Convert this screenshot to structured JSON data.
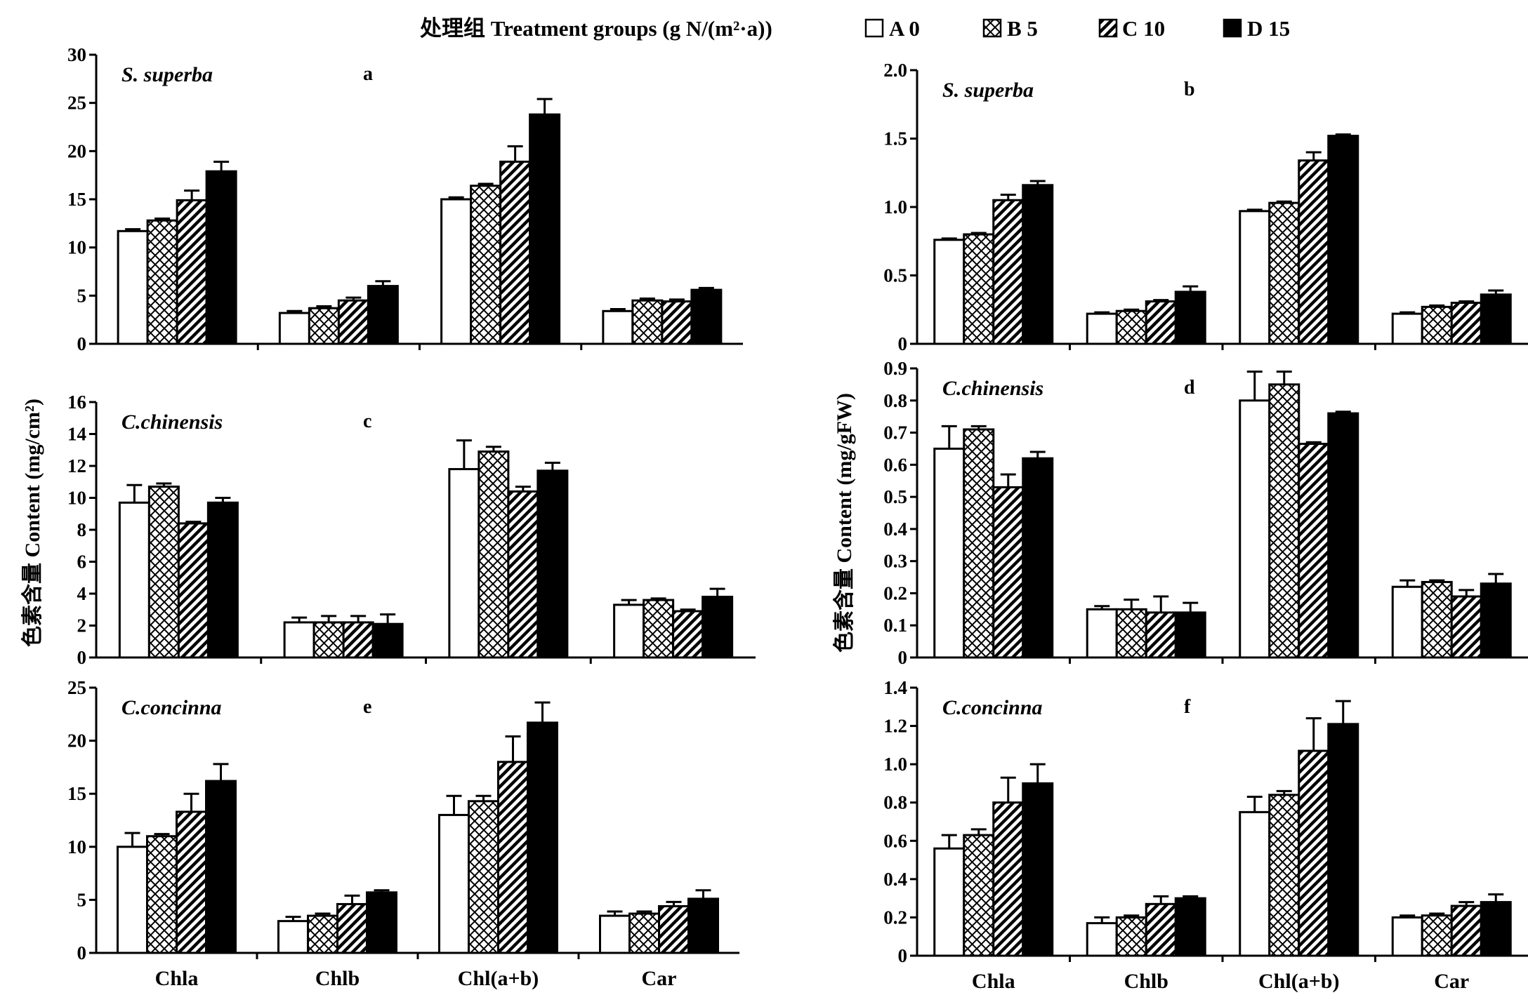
{
  "legend": {
    "title": "处理组 Treatment groups (g N/(m²·a))",
    "items": [
      {
        "key": "A",
        "label": "A 0",
        "pattern": "empty"
      },
      {
        "key": "B",
        "label": "B 5",
        "pattern": "crosshatch"
      },
      {
        "key": "C",
        "label": "C 10",
        "pattern": "diagonal"
      },
      {
        "key": "D",
        "label": "D 15",
        "pattern": "solid"
      }
    ]
  },
  "ylabels": {
    "left": "色素含量 Content (mg/cm²)",
    "right": "色素含量 Content (mg/gFW)"
  },
  "chart_data": [
    {
      "id": "a",
      "letter": "a",
      "species": "S. superba",
      "type": "bar",
      "categories": [
        "Chla",
        "Chlb",
        "Chl(a+b)",
        "Car"
      ],
      "ylim": [
        0,
        30
      ],
      "yticks": [
        0,
        5,
        10,
        15,
        20,
        25,
        30
      ],
      "series": [
        {
          "name": "A 0",
          "values": [
            11.7,
            3.2,
            15.0,
            3.4
          ],
          "errors": [
            0.2,
            0.2,
            0.2,
            0.2
          ]
        },
        {
          "name": "B 5",
          "values": [
            12.8,
            3.7,
            16.4,
            4.5
          ],
          "errors": [
            0.2,
            0.2,
            0.2,
            0.2
          ]
        },
        {
          "name": "C 10",
          "values": [
            14.9,
            4.5,
            18.9,
            4.4
          ],
          "errors": [
            1.0,
            0.3,
            1.6,
            0.2
          ]
        },
        {
          "name": "D 15",
          "values": [
            17.9,
            6.0,
            23.8,
            5.6
          ],
          "errors": [
            1.0,
            0.5,
            1.6,
            0.2
          ]
        }
      ]
    },
    {
      "id": "b",
      "letter": "b",
      "species": "S. superba",
      "type": "bar",
      "categories": [
        "Chla",
        "Chlb",
        "Chl(a+b)",
        "Car"
      ],
      "ylim": [
        0,
        2.0
      ],
      "yticks": [
        0,
        0.5,
        1.0,
        1.5,
        2.0
      ],
      "series": [
        {
          "name": "A 0",
          "values": [
            0.76,
            0.22,
            0.97,
            0.22
          ],
          "errors": [
            0.01,
            0.01,
            0.01,
            0.01
          ]
        },
        {
          "name": "B 5",
          "values": [
            0.8,
            0.24,
            1.03,
            0.27
          ],
          "errors": [
            0.01,
            0.01,
            0.01,
            0.01
          ]
        },
        {
          "name": "C 10",
          "values": [
            1.05,
            0.31,
            1.34,
            0.3
          ],
          "errors": [
            0.04,
            0.01,
            0.06,
            0.01
          ]
        },
        {
          "name": "D 15",
          "values": [
            1.16,
            0.38,
            1.52,
            0.36
          ],
          "errors": [
            0.03,
            0.04,
            0.01,
            0.03
          ]
        }
      ]
    },
    {
      "id": "c",
      "letter": "c",
      "species": "C.chinensis",
      "type": "bar",
      "categories": [
        "Chla",
        "Chlb",
        "Chl(a+b)",
        "Car"
      ],
      "ylim": [
        0,
        16
      ],
      "yticks": [
        0,
        2,
        4,
        6,
        8,
        10,
        12,
        14,
        16
      ],
      "series": [
        {
          "name": "A 0",
          "values": [
            9.7,
            2.2,
            11.8,
            3.3
          ],
          "errors": [
            1.1,
            0.3,
            1.8,
            0.3
          ]
        },
        {
          "name": "B 5",
          "values": [
            10.7,
            2.2,
            12.9,
            3.6
          ],
          "errors": [
            0.2,
            0.4,
            0.3,
            0.1
          ]
        },
        {
          "name": "C 10",
          "values": [
            8.4,
            2.2,
            10.4,
            2.9
          ],
          "errors": [
            0.1,
            0.4,
            0.3,
            0.1
          ]
        },
        {
          "name": "D 15",
          "values": [
            9.7,
            2.1,
            11.7,
            3.8
          ],
          "errors": [
            0.3,
            0.6,
            0.5,
            0.5
          ]
        }
      ]
    },
    {
      "id": "d",
      "letter": "d",
      "species": "C.chinensis",
      "type": "bar",
      "categories": [
        "Chla",
        "Chlb",
        "Chl(a+b)",
        "Car"
      ],
      "ylim": [
        0,
        0.9
      ],
      "yticks": [
        0,
        0.1,
        0.2,
        0.3,
        0.4,
        0.5,
        0.6,
        0.7,
        0.8,
        0.9
      ],
      "series": [
        {
          "name": "A 0",
          "values": [
            0.65,
            0.15,
            0.8,
            0.22
          ],
          "errors": [
            0.07,
            0.01,
            0.09,
            0.02
          ]
        },
        {
          "name": "B 5",
          "values": [
            0.71,
            0.15,
            0.85,
            0.235
          ],
          "errors": [
            0.01,
            0.03,
            0.04,
            0.005
          ]
        },
        {
          "name": "C 10",
          "values": [
            0.53,
            0.14,
            0.665,
            0.19
          ],
          "errors": [
            0.04,
            0.05,
            0.005,
            0.02
          ]
        },
        {
          "name": "D 15",
          "values": [
            0.62,
            0.14,
            0.76,
            0.23
          ],
          "errors": [
            0.02,
            0.03,
            0.005,
            0.03
          ]
        }
      ]
    },
    {
      "id": "e",
      "letter": "e",
      "species": "C.concinna",
      "type": "bar",
      "categories": [
        "Chla",
        "Chlb",
        "Chl(a+b)",
        "Car"
      ],
      "ylim": [
        0,
        25
      ],
      "yticks": [
        0,
        5,
        10,
        15,
        20,
        25
      ],
      "series": [
        {
          "name": "A 0",
          "values": [
            10.0,
            3.0,
            13.0,
            3.5
          ],
          "errors": [
            1.3,
            0.4,
            1.8,
            0.4
          ]
        },
        {
          "name": "B 5",
          "values": [
            11.0,
            3.5,
            14.3,
            3.7
          ],
          "errors": [
            0.2,
            0.2,
            0.5,
            0.2
          ]
        },
        {
          "name": "C 10",
          "values": [
            13.3,
            4.6,
            18.0,
            4.4
          ],
          "errors": [
            1.7,
            0.8,
            2.4,
            0.4
          ]
        },
        {
          "name": "D 15",
          "values": [
            16.2,
            5.7,
            21.7,
            5.1
          ],
          "errors": [
            1.6,
            0.2,
            1.9,
            0.8
          ]
        }
      ]
    },
    {
      "id": "f",
      "letter": "f",
      "species": "C.concinna",
      "type": "bar",
      "categories": [
        "Chla",
        "Chlb",
        "Chl(a+b)",
        "Car"
      ],
      "ylim": [
        0,
        1.4
      ],
      "yticks": [
        0,
        0.2,
        0.4,
        0.6,
        0.8,
        1.0,
        1.2,
        1.4
      ],
      "series": [
        {
          "name": "A 0",
          "values": [
            0.56,
            0.17,
            0.75,
            0.2
          ],
          "errors": [
            0.07,
            0.03,
            0.08,
            0.01
          ]
        },
        {
          "name": "B 5",
          "values": [
            0.63,
            0.2,
            0.84,
            0.21
          ],
          "errors": [
            0.03,
            0.01,
            0.02,
            0.01
          ]
        },
        {
          "name": "C 10",
          "values": [
            0.8,
            0.27,
            1.07,
            0.26
          ],
          "errors": [
            0.13,
            0.04,
            0.17,
            0.02
          ]
        },
        {
          "name": "D 15",
          "values": [
            0.9,
            0.3,
            1.21,
            0.28
          ],
          "errors": [
            0.1,
            0.01,
            0.12,
            0.04
          ]
        }
      ]
    }
  ]
}
